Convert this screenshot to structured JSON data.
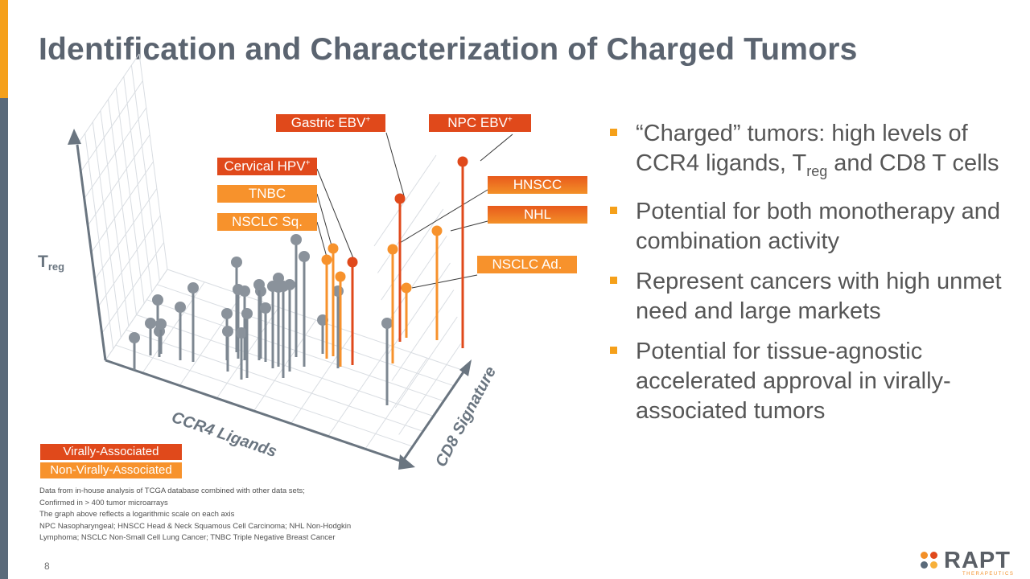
{
  "slide": {
    "title": "Identification and Characterization of Charged Tumors",
    "page_number": "8",
    "accent_colors": {
      "orange": "#f5a01a",
      "slate": "#5a6a7a",
      "virally": "#e0491b",
      "non_virally": "#f7922c",
      "other": "#8a929b"
    }
  },
  "chart_data": {
    "type": "scatter",
    "projection": "3d",
    "scale": "logarithmic",
    "axes": {
      "x": "CCR4 Ligands",
      "y": "CD8 Signature",
      "z_prefix": "T",
      "z_subscript": "reg"
    },
    "legend": {
      "virally": "Virally-Associated",
      "non_virally": "Non-Virally-Associated"
    },
    "labels": {
      "gastric": {
        "text": "Gastric EBV",
        "sup": "+"
      },
      "npc": {
        "text": "NPC EBV",
        "sup": "+"
      },
      "cervical": {
        "text": "Cervical HPV",
        "sup": "+"
      },
      "tnbc": {
        "text": "TNBC"
      },
      "nsclc_sq": {
        "text": "NSCLC Sq."
      },
      "hnscc": {
        "text": "HNSCC"
      },
      "nhl": {
        "text": "NHL"
      },
      "nsclc_ad": {
        "text": "NSCLC Ad."
      }
    },
    "points": [
      {
        "group": "virally",
        "x": 575,
        "y": 433,
        "z": 201
      },
      {
        "group": "virally",
        "x": 497,
        "y": 425,
        "z": 247
      },
      {
        "group": "virally",
        "x": 438,
        "y": 454,
        "z": 326
      },
      {
        "group": "non_virally",
        "x": 543,
        "y": 423,
        "z": 287
      },
      {
        "group": "non_virally",
        "x": 488,
        "y": 452,
        "z": 310
      },
      {
        "group": "non_virally",
        "x": 414,
        "y": 443,
        "z": 309
      },
      {
        "group": "non_virally",
        "x": 406,
        "y": 446,
        "z": 323
      },
      {
        "group": "non_virally",
        "x": 423,
        "y": 456,
        "z": 344
      },
      {
        "group": "non_virally",
        "x": 505,
        "y": 420,
        "z": 358
      },
      {
        "group": "other",
        "x": 167,
        "y": 460,
        "z": 420
      },
      {
        "group": "other",
        "x": 187,
        "y": 442,
        "z": 402
      },
      {
        "group": "other",
        "x": 200,
        "y": 440,
        "z": 403
      },
      {
        "group": "other",
        "x": 198,
        "y": 444,
        "z": 412
      },
      {
        "group": "other",
        "x": 196,
        "y": 412,
        "z": 373
      },
      {
        "group": "other",
        "x": 224,
        "y": 448,
        "z": 382
      },
      {
        "group": "other",
        "x": 240,
        "y": 450,
        "z": 358
      },
      {
        "group": "other",
        "x": 283,
        "y": 462,
        "z": 412
      },
      {
        "group": "other",
        "x": 282,
        "y": 448,
        "z": 390
      },
      {
        "group": "other",
        "x": 307,
        "y": 470,
        "z": 390
      },
      {
        "group": "other",
        "x": 300,
        "y": 472,
        "z": 414
      },
      {
        "group": "other",
        "x": 296,
        "y": 446,
        "z": 360
      },
      {
        "group": "other",
        "x": 304,
        "y": 448,
        "z": 362
      },
      {
        "group": "other",
        "x": 294,
        "y": 438,
        "z": 326
      },
      {
        "group": "other",
        "x": 330,
        "y": 450,
        "z": 383
      },
      {
        "group": "other",
        "x": 322,
        "y": 448,
        "z": 354
      },
      {
        "group": "other",
        "x": 324,
        "y": 446,
        "z": 362
      },
      {
        "group": "other",
        "x": 339,
        "y": 458,
        "z": 356
      },
      {
        "group": "other",
        "x": 346,
        "y": 456,
        "z": 357
      },
      {
        "group": "other",
        "x": 346,
        "y": 452,
        "z": 346
      },
      {
        "group": "other",
        "x": 352,
        "y": 470,
        "z": 356
      },
      {
        "group": "other",
        "x": 360,
        "y": 462,
        "z": 354
      },
      {
        "group": "other",
        "x": 368,
        "y": 444,
        "z": 298
      },
      {
        "group": "other",
        "x": 378,
        "y": 456,
        "z": 319
      },
      {
        "group": "other",
        "x": 401,
        "y": 440,
        "z": 398
      },
      {
        "group": "other",
        "x": 420,
        "y": 458,
        "z": 362
      },
      {
        "group": "other",
        "x": 481,
        "y": 504,
        "z": 402
      }
    ]
  },
  "bullets": [
    {
      "pre": "“Charged” tumors: high levels of CCR4 ligands, T",
      "sub": "reg",
      "post": " and CD8 T cells"
    },
    {
      "pre": "Potential for both monotherapy and combination activity"
    },
    {
      "pre": "Represent cancers with high unmet need and large markets"
    },
    {
      "pre": "Potential for tissue-agnostic accelerated approval in virally-associated tumors"
    }
  ],
  "footnotes": [
    "Data from in-house analysis of TCGA database combined with other data sets;",
    "Confirmed in > 400 tumor microarrays",
    "The graph above reflects a logarithmic scale on each axis",
    "NPC Nasopharyngeal; HNSCC Head & Neck Squamous Cell Carcinoma; NHL Non-Hodgkin",
    "Lymphoma; NSCLC Non-Small Cell Lung Cancer; TNBC Triple Negative Breast Cancer"
  ],
  "logo": {
    "word": "RAPT",
    "sub": "THERAPEUTICS",
    "dot_colors": [
      "#f39028",
      "#e0491b",
      "#5a6a7a",
      "#f7b03a"
    ]
  }
}
